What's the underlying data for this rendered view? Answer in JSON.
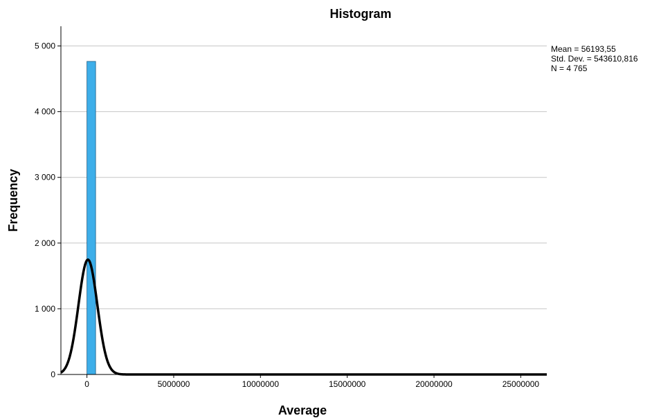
{
  "chart_data": {
    "type": "bar",
    "title": "Histogram",
    "xlabel": "Average",
    "ylabel": "Frequency",
    "xlim": [
      -1500000,
      26500000
    ],
    "ylim": [
      0,
      5300
    ],
    "x_ticks": [
      0,
      5000000,
      10000000,
      15000000,
      20000000,
      25000000
    ],
    "x_tick_labels": [
      "0",
      "5000000",
      "10000000",
      "15000000",
      "20000000",
      "25000000"
    ],
    "y_ticks": [
      0,
      1000,
      2000,
      3000,
      4000,
      5000
    ],
    "y_tick_labels": [
      "0",
      "1 000",
      "2 000",
      "3 000",
      "4 000",
      "5 000"
    ],
    "grid": "horizontal",
    "bins": [
      {
        "start": 0,
        "end": 500000,
        "count": 4765
      }
    ],
    "bar_color": "#3daee9",
    "normal_curve": {
      "mean": 56193.55,
      "sd": 543610.816,
      "n": 4765,
      "bin_width": 500000,
      "color": "#000000"
    },
    "stats": {
      "mean": "Mean = 56193,55",
      "std_dev": "Std. Dev. = 543610,816",
      "n": "N = 4 765"
    }
  }
}
